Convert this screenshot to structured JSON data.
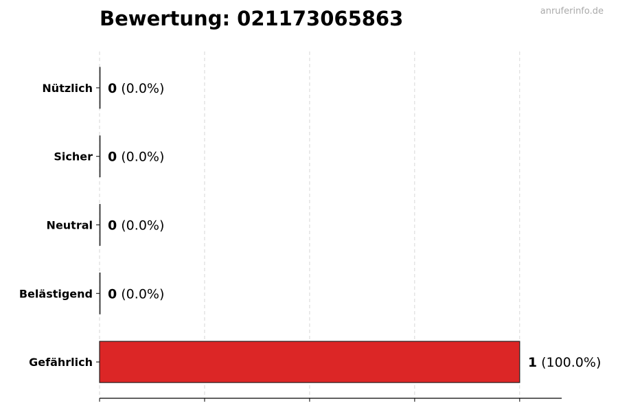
{
  "chart_data": {
    "type": "bar",
    "orientation": "horizontal",
    "title": "Bewertung: 021173065863",
    "categories": [
      "Nützlich",
      "Sicher",
      "Neutral",
      "Belästigend",
      "Gefährlich"
    ],
    "values": [
      0,
      0,
      0,
      0,
      1
    ],
    "percent_labels": [
      "(0.0%)",
      "(0.0%)",
      "(0.0%)",
      "(0.0%)",
      "(100.0%)"
    ],
    "colors": [
      "#888888",
      "#888888",
      "#888888",
      "#888888",
      "#dc2626"
    ],
    "xlim": [
      0,
      1.1
    ],
    "xticks": [
      0,
      0.25,
      0.5,
      0.75,
      1.0
    ],
    "xtick_labels_shown": false,
    "grid": "vertical dashed",
    "xlabel": "",
    "ylabel": ""
  },
  "watermark": "anruferinfo.de"
}
